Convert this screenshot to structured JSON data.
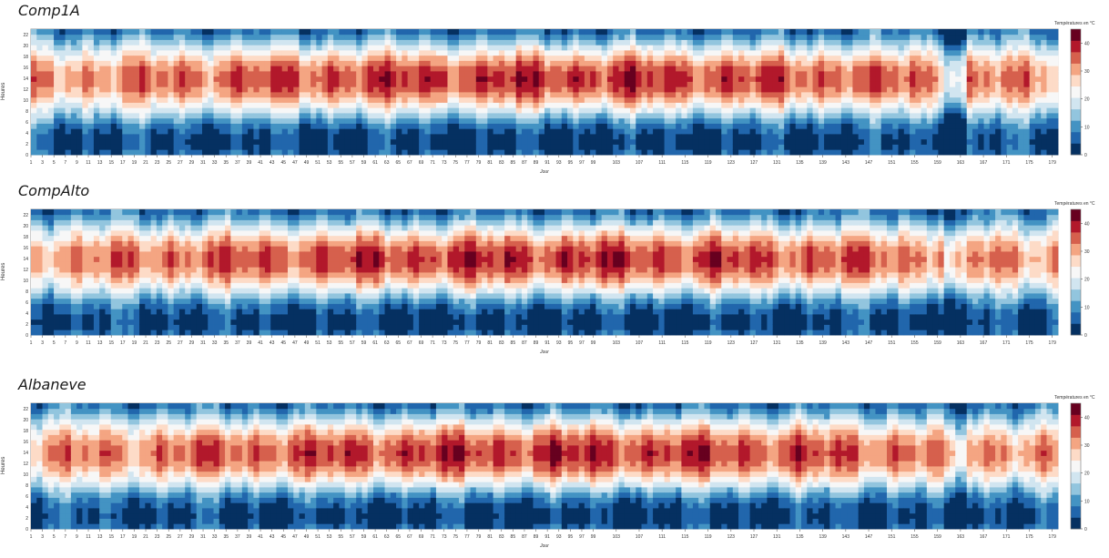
{
  "colors": {
    "scale": [
      "#053061",
      "#2166ac",
      "#4393c3",
      "#92c5de",
      "#d1e5f0",
      "#f7f7f7",
      "#fddbc7",
      "#f4a582",
      "#d6604d",
      "#b2182b",
      "#67001f"
    ]
  },
  "chart_data": [
    {
      "type": "heatmap",
      "title": "Comp1A",
      "xlabel": "Jour",
      "ylabel": "Heures",
      "x_ticks": [
        "1",
        "3",
        "5",
        "7",
        "9",
        "11",
        "13",
        "15",
        "17",
        "19",
        "21",
        "23",
        "25",
        "27",
        "29",
        "31",
        "33",
        "35",
        "37",
        "39",
        "41",
        "43",
        "45",
        "47",
        "49",
        "51",
        "53",
        "55",
        "57",
        "59",
        "61",
        "63",
        "65",
        "67",
        "69",
        "71",
        "73",
        "75",
        "77",
        "79",
        "81",
        "83",
        "85",
        "87",
        "89",
        "91",
        "93",
        "95",
        "97",
        "99",
        "103",
        "107",
        "111",
        "115",
        "119",
        "123",
        "127",
        "131",
        "135",
        "139",
        "143",
        "147",
        "151",
        "155",
        "159",
        "163",
        "167",
        "171",
        "175",
        "179"
      ],
      "y_ticks": [
        "0",
        "2",
        "4",
        "6",
        "8",
        "10",
        "12",
        "14",
        "16",
        "18",
        "20",
        "22"
      ],
      "xlim": [
        1,
        180
      ],
      "ylim": [
        0,
        23
      ],
      "legend": {
        "title": "Températures en °C",
        "ticks": [
          "0",
          "10",
          "20",
          "30",
          "40"
        ],
        "range": [
          0,
          45
        ]
      }
    },
    {
      "type": "heatmap",
      "title": "CompAlto",
      "xlabel": "Jour",
      "ylabel": "Heures",
      "x_ticks": [
        "1",
        "3",
        "5",
        "7",
        "9",
        "11",
        "13",
        "15",
        "17",
        "19",
        "21",
        "23",
        "25",
        "27",
        "29",
        "31",
        "33",
        "35",
        "37",
        "39",
        "41",
        "43",
        "45",
        "47",
        "49",
        "51",
        "53",
        "55",
        "57",
        "59",
        "61",
        "63",
        "65",
        "67",
        "69",
        "71",
        "73",
        "75",
        "77",
        "79",
        "81",
        "83",
        "85",
        "87",
        "89",
        "91",
        "93",
        "95",
        "97",
        "99",
        "103",
        "107",
        "111",
        "115",
        "119",
        "123",
        "127",
        "131",
        "135",
        "139",
        "143",
        "147",
        "151",
        "155",
        "159",
        "163",
        "167",
        "171",
        "175",
        "179"
      ],
      "y_ticks": [
        "0",
        "2",
        "4",
        "6",
        "8",
        "10",
        "12",
        "14",
        "16",
        "18",
        "20",
        "22"
      ],
      "xlim": [
        1,
        180
      ],
      "ylim": [
        0,
        23
      ],
      "legend": {
        "title": "Températures en °C",
        "ticks": [
          "0",
          "10",
          "20",
          "30",
          "40"
        ],
        "range": [
          0,
          45
        ]
      }
    },
    {
      "type": "heatmap",
      "title": "Albaneve",
      "xlabel": "Jour",
      "ylabel": "Heures",
      "x_ticks": [
        "1",
        "3",
        "5",
        "7",
        "9",
        "11",
        "13",
        "15",
        "17",
        "19",
        "21",
        "23",
        "25",
        "27",
        "29",
        "31",
        "33",
        "35",
        "37",
        "39",
        "41",
        "43",
        "45",
        "47",
        "49",
        "51",
        "53",
        "55",
        "57",
        "59",
        "61",
        "63",
        "65",
        "67",
        "69",
        "71",
        "73",
        "75",
        "77",
        "79",
        "81",
        "83",
        "85",
        "87",
        "89",
        "91",
        "93",
        "95",
        "97",
        "99",
        "103",
        "107",
        "111",
        "115",
        "119",
        "123",
        "127",
        "131",
        "135",
        "139",
        "143",
        "147",
        "151",
        "155",
        "159",
        "163",
        "167",
        "171",
        "175",
        "179"
      ],
      "y_ticks": [
        "0",
        "2",
        "4",
        "6",
        "8",
        "10",
        "12",
        "14",
        "16",
        "18",
        "20",
        "22"
      ],
      "xlim": [
        1,
        180
      ],
      "ylim": [
        0,
        23
      ],
      "legend": {
        "title": "Températures en °C",
        "ticks": [
          "0",
          "10",
          "20",
          "30",
          "40"
        ],
        "range": [
          0,
          45
        ]
      }
    }
  ]
}
